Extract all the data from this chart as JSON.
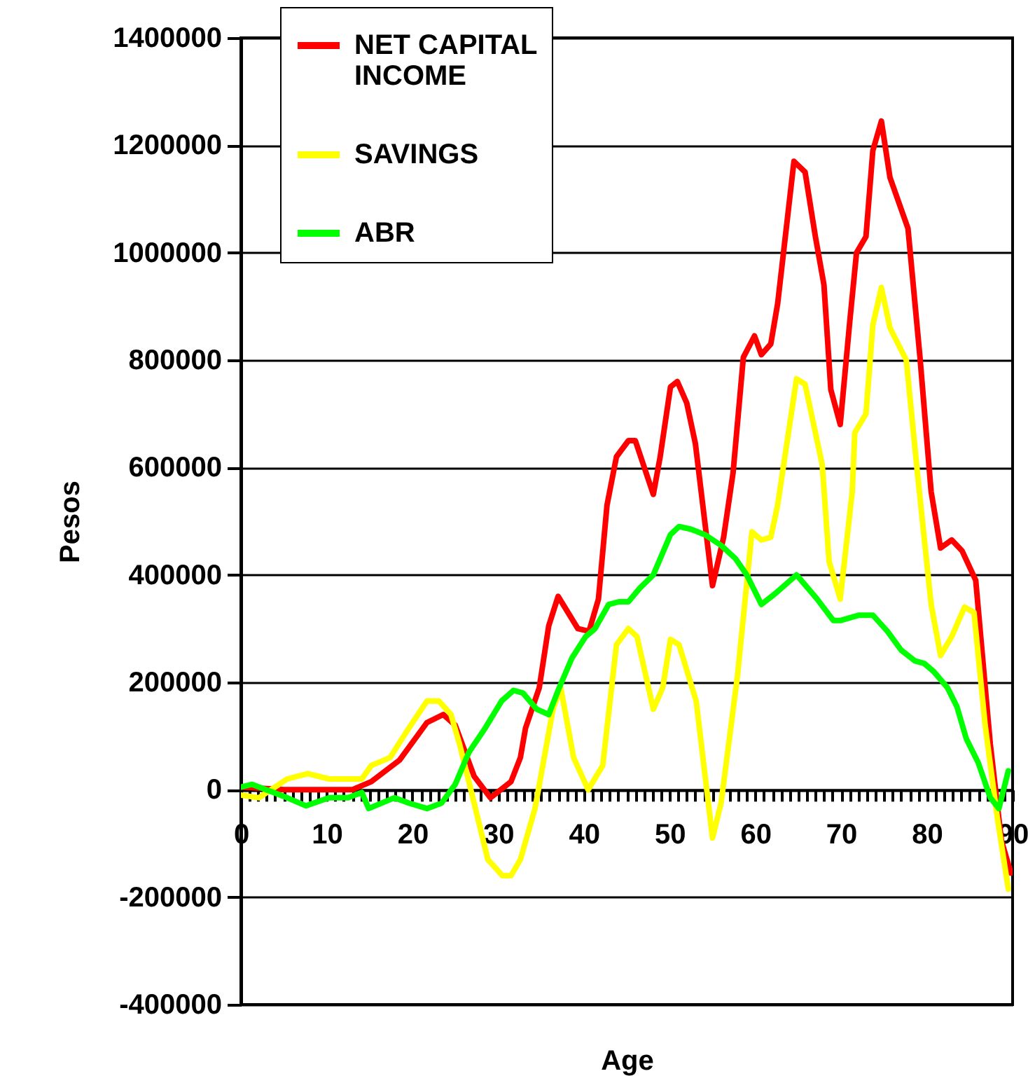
{
  "chart_data": {
    "type": "line",
    "xlabel": "Age",
    "ylabel": "Pesos",
    "xlim": [
      0,
      90
    ],
    "ylim": [
      -400000,
      1400000
    ],
    "xticks": [
      0,
      {
        "value": 1,
        "label": null
      },
      {
        "value": 2,
        "label": null
      },
      {
        "value": 3,
        "label": null
      },
      {
        "value": 4,
        "label": null
      },
      {
        "value": 5,
        "label": null
      },
      {
        "value": 6,
        "label": null
      },
      {
        "value": 7,
        "label": null
      },
      {
        "value": 8,
        "label": null
      },
      {
        "value": 9,
        "label": null
      },
      10,
      {
        "value": 11,
        "label": null
      },
      {
        "value": 12,
        "label": null
      },
      {
        "value": 13,
        "label": null
      },
      {
        "value": 14,
        "label": null
      },
      {
        "value": 15,
        "label": null
      },
      {
        "value": 16,
        "label": null
      },
      {
        "value": 17,
        "label": null
      },
      {
        "value": 18,
        "label": null
      },
      {
        "value": 19,
        "label": null
      },
      20,
      {
        "value": 21,
        "label": null
      },
      {
        "value": 22,
        "label": null
      },
      {
        "value": 23,
        "label": null
      },
      {
        "value": 24,
        "label": null
      },
      {
        "value": 25,
        "label": null
      },
      {
        "value": 26,
        "label": null
      },
      {
        "value": 27,
        "label": null
      },
      {
        "value": 28,
        "label": null
      },
      {
        "value": 29,
        "label": null
      },
      30,
      {
        "value": 31,
        "label": null
      },
      {
        "value": 32,
        "label": null
      },
      {
        "value": 33,
        "label": null
      },
      {
        "value": 34,
        "label": null
      },
      {
        "value": 35,
        "label": null
      },
      {
        "value": 36,
        "label": null
      },
      {
        "value": 37,
        "label": null
      },
      {
        "value": 38,
        "label": null
      },
      {
        "value": 39,
        "label": null
      },
      40,
      {
        "value": 41,
        "label": null
      },
      {
        "value": 42,
        "label": null
      },
      {
        "value": 43,
        "label": null
      },
      {
        "value": 44,
        "label": null
      },
      {
        "value": 45,
        "label": null
      },
      {
        "value": 46,
        "label": null
      },
      {
        "value": 47,
        "label": null
      },
      {
        "value": 48,
        "label": null
      },
      {
        "value": 49,
        "label": null
      },
      50,
      {
        "value": 51,
        "label": null
      },
      {
        "value": 52,
        "label": null
      },
      {
        "value": 53,
        "label": null
      },
      {
        "value": 54,
        "label": null
      },
      {
        "value": 55,
        "label": null
      },
      {
        "value": 56,
        "label": null
      },
      {
        "value": 57,
        "label": null
      },
      {
        "value": 58,
        "label": null
      },
      {
        "value": 59,
        "label": null
      },
      60,
      {
        "value": 61,
        "label": null
      },
      {
        "value": 62,
        "label": null
      },
      {
        "value": 63,
        "label": null
      },
      {
        "value": 64,
        "label": null
      },
      {
        "value": 65,
        "label": null
      },
      {
        "value": 66,
        "label": null
      },
      {
        "value": 67,
        "label": null
      },
      {
        "value": 68,
        "label": null
      },
      {
        "value": 69,
        "label": null
      },
      70,
      {
        "value": 71,
        "label": null
      },
      {
        "value": 72,
        "label": null
      },
      {
        "value": 73,
        "label": null
      },
      {
        "value": 74,
        "label": null
      },
      {
        "value": 75,
        "label": null
      },
      {
        "value": 76,
        "label": null
      },
      {
        "value": 77,
        "label": null
      },
      {
        "value": 78,
        "label": null
      },
      {
        "value": 79,
        "label": null
      },
      80,
      {
        "value": 81,
        "label": null
      },
      {
        "value": 82,
        "label": null
      },
      {
        "value": 83,
        "label": null
      },
      {
        "value": 84,
        "label": null
      },
      {
        "value": 85,
        "label": null
      },
      {
        "value": 86,
        "label": null
      },
      {
        "value": 87,
        "label": null
      },
      {
        "value": 88,
        "label": null
      },
      {
        "value": 89,
        "label": null
      },
      90
    ],
    "yticks": [
      -400000,
      -200000,
      0,
      200000,
      400000,
      600000,
      800000,
      1000000,
      1200000,
      1400000
    ],
    "grid": "y",
    "legend": "top left",
    "marker": "none",
    "series": [
      {
        "name": "NET CAPITAL INCOME",
        "color": "#ff0000",
        "x": [
          0,
          5,
          10,
          13,
          15.2,
          18.5,
          21.7,
          23.6,
          25,
          27.2,
          29.1,
          31.5,
          32.6,
          33.2,
          34.8,
          35.9,
          37,
          39.3,
          40.6,
          41.7,
          42.7,
          43.8,
          45.2,
          46,
          48.1,
          48.9,
          50.1,
          50.9,
          52,
          53,
          55,
          56.3,
          57.4,
          58.6,
          59.9,
          60.7,
          61.8,
          62.6,
          64.5,
          65.8,
          67,
          68,
          68.8,
          69.9,
          71,
          71.8,
          72.9,
          73.7,
          74.7,
          75.7,
          77.8,
          79.2,
          80.5,
          81.6,
          82.9,
          84.1,
          85.7,
          87.4,
          88.7,
          89.8
        ],
        "values": [
          5000,
          0,
          0,
          0,
          15000,
          55000,
          125000,
          140000,
          120000,
          25000,
          -15000,
          15000,
          60000,
          115000,
          190000,
          305000,
          360000,
          300000,
          295000,
          355000,
          530000,
          620000,
          650000,
          650000,
          550000,
          620000,
          750000,
          760000,
          720000,
          645000,
          380000,
          470000,
          590000,
          805000,
          845000,
          810000,
          830000,
          905000,
          1170000,
          1150000,
          1030000,
          940000,
          745000,
          680000,
          870000,
          1000000,
          1030000,
          1190000,
          1245000,
          1140000,
          1045000,
          805000,
          555000,
          450000,
          465000,
          445000,
          390000,
          85000,
          -95000,
          -155000
        ]
      },
      {
        "name": "SAVINGS",
        "color": "#ffff00",
        "x": [
          0,
          2.1,
          5.4,
          7.8,
          10.3,
          14.1,
          15.2,
          17.4,
          19.6,
          21.7,
          23.1,
          24.5,
          25.5,
          27.2,
          28.8,
          30.5,
          31.5,
          32.6,
          34.3,
          36.4,
          37.3,
          38.8,
          40.5,
          42.2,
          43.8,
          45.2,
          46.2,
          48.1,
          49.2,
          50.1,
          51.1,
          53.1,
          55,
          56,
          57.9,
          59.6,
          60.7,
          61.8,
          62.6,
          64.8,
          65.8,
          67.8,
          68.6,
          69.9,
          71.3,
          71.6,
          72.9,
          73.7,
          74.7,
          75.7,
          77.6,
          78.9,
          80.5,
          81.6,
          82.9,
          84.4,
          85.5,
          86.8,
          88.2,
          89.5
        ],
        "values": [
          -10000,
          -15000,
          20000,
          30000,
          20000,
          20000,
          45000,
          60000,
          115000,
          165000,
          165000,
          140000,
          85000,
          -25000,
          -130000,
          -160000,
          -160000,
          -130000,
          -35000,
          150000,
          190000,
          60000,
          0,
          45000,
          270000,
          300000,
          285000,
          150000,
          190000,
          280000,
          270000,
          165000,
          -90000,
          -25000,
          210000,
          480000,
          465000,
          470000,
          530000,
          765000,
          755000,
          605000,
          425000,
          355000,
          555000,
          665000,
          700000,
          865000,
          935000,
          860000,
          800000,
          590000,
          345000,
          250000,
          285000,
          340000,
          330000,
          120000,
          -50000,
          -185000
        ]
      },
      {
        "name": "ABR",
        "color": "#00ff00",
        "x": [
          0,
          1.3,
          3.8,
          5.4,
          7.6,
          10.3,
          12.5,
          14.1,
          14.9,
          17.9,
          19.6,
          21.7,
          23.4,
          25,
          26.6,
          28.5,
          30.4,
          31.8,
          32.9,
          34.5,
          35.9,
          37,
          38.6,
          40.2,
          41.3,
          42.9,
          44.1,
          45.2,
          46.5,
          48.1,
          50.1,
          51.1,
          52.5,
          54.1,
          56,
          57.7,
          59,
          60.7,
          62.3,
          64.8,
          67.2,
          69.1,
          69.9,
          72.1,
          73.7,
          75.4,
          77,
          78.6,
          79.7,
          80.8,
          82.4,
          83.5,
          84.6,
          86,
          87.4,
          88.4,
          89.5
        ],
        "values": [
          5000,
          10000,
          -5000,
          -15000,
          -30000,
          -15000,
          -15000,
          -5000,
          -35000,
          -15000,
          -25000,
          -35000,
          -25000,
          10000,
          70000,
          115000,
          165000,
          185000,
          180000,
          150000,
          140000,
          185000,
          245000,
          285000,
          300000,
          345000,
          350000,
          350000,
          375000,
          400000,
          475000,
          490000,
          485000,
          475000,
          455000,
          430000,
          400000,
          345000,
          365000,
          400000,
          355000,
          315000,
          315000,
          325000,
          325000,
          295000,
          260000,
          240000,
          235000,
          220000,
          190000,
          155000,
          95000,
          50000,
          -15000,
          -35000,
          35000
        ]
      }
    ]
  }
}
